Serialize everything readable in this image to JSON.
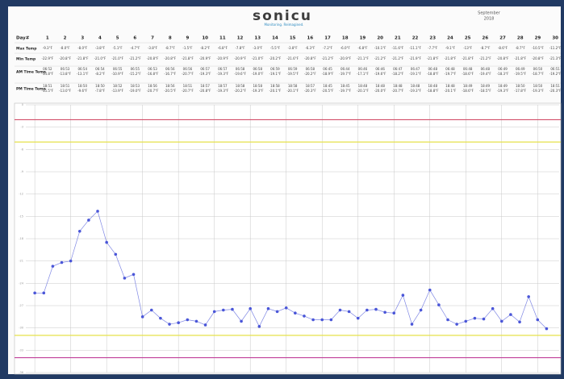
{
  "header": {
    "logo": "sonicu",
    "tagline": "Monitoring. Reimagined.",
    "month": "September",
    "year": "2018"
  },
  "table": {
    "row_labels": [
      "Day#",
      "Max Temp",
      "Min Temp",
      "AM Time Temp",
      "PM Time Temp"
    ],
    "days": [
      1,
      2,
      3,
      4,
      5,
      6,
      7,
      8,
      9,
      10,
      11,
      12,
      13,
      14,
      15,
      16,
      17,
      18,
      19,
      20,
      21,
      22,
      23,
      24,
      25,
      26,
      27,
      28,
      29,
      30
    ],
    "max": [
      "-9.3°F",
      "-8.0°F",
      "-8.0°F",
      "-3.8°F",
      "-5.1°F",
      "-4.7°F",
      "-3.8°F",
      "-8.7°F",
      "-1.5°F",
      "-8.2°F",
      "-6.8°F",
      "-7.8°F",
      "-3.0°F",
      "-5.5°F",
      "-3.8°F",
      "-6.3°F",
      "-7.2°F",
      "-6.0°F",
      "-6.8°F",
      "-10.1°F",
      "-11.6°F",
      "-11.1°F",
      "-7.7°F",
      "-9.1°F",
      "-13°F",
      "-8.7°F",
      "-8.6°F",
      "-8.7°F",
      "-10.5°F",
      "-11.2°F"
    ],
    "min": [
      "-22.9°F",
      "-20.8°F",
      "-21.8°F",
      "-21.0°F",
      "-21.0°F",
      "-21.2°F",
      "-20.8°F",
      "-20.8°F",
      "-21.8°F",
      "-20.9°F",
      "-20.9°F",
      "-20.9°F",
      "-21.0°F",
      "-20.2°F",
      "-21.6°F",
      "-20.8°F",
      "-21.2°F",
      "-20.9°F",
      "-21.1°F",
      "-21.2°F",
      "-21.2°F",
      "-21.9°F",
      "-21.8°F",
      "-21.8°F",
      "-21.8°F",
      "-21.2°F",
      "-20.8°F",
      "-21.8°F",
      "-20.8°F",
      "-21.3°F"
    ],
    "am": [
      [
        "06:52",
        "-14.8°F"
      ],
      [
        "06:53",
        "-13.8°F"
      ],
      [
        "06:54",
        "-13.1°F"
      ],
      [
        "06:54",
        "-8.2°F"
      ],
      [
        "06:55",
        "-10.9°F"
      ],
      [
        "06:55",
        "-15.2°F"
      ],
      [
        "06:53",
        "-16.8°F"
      ],
      [
        "06:56",
        "-16.7°F"
      ],
      [
        "06:56",
        "-20.7°F"
      ],
      [
        "06:57",
        "-19.3°F"
      ],
      [
        "06:57",
        "-19.3°F"
      ],
      [
        "06:58",
        "-19.6°F"
      ],
      [
        "06:58",
        "-19.0°F"
      ],
      [
        "06:59",
        "-19.1°F"
      ],
      [
        "06:59",
        "-19.5°F"
      ],
      [
        "06:58",
        "-20.2°F"
      ],
      [
        "06:45",
        "-18.9°F"
      ],
      [
        "06:44",
        "-19.7°F"
      ],
      [
        "06:46",
        "-17.1°F"
      ],
      [
        "06:46",
        "-19.6°F"
      ],
      [
        "06:47",
        "-18.2°F"
      ],
      [
        "06:47",
        "-19.1°F"
      ],
      [
        "06:48",
        "-18.8°F"
      ],
      [
        "06:48",
        "-19.7°F"
      ],
      [
        "06:48",
        "-18.6°F"
      ],
      [
        "06:48",
        "-19.4°F"
      ],
      [
        "06:49",
        "-18.3°F"
      ],
      [
        "06:49",
        "-19.5°F"
      ],
      [
        "06:50",
        "-18.7°F"
      ],
      [
        "06:51",
        "-19.2°F"
      ]
    ],
    "pm": [
      [
        "18:51",
        "-15.5°F"
      ],
      [
        "18:51",
        "-13.0°F"
      ],
      [
        "18:50",
        "-9.6°F"
      ],
      [
        "18:50",
        "-7.8°F"
      ],
      [
        "18:52",
        "-13.9°F"
      ],
      [
        "18:53",
        "-19.0°F"
      ],
      [
        "18:56",
        "-20.7°F"
      ],
      [
        "18:56",
        "-20.5°F"
      ],
      [
        "18:51",
        "-20.7°F"
      ],
      [
        "18:57",
        "-20.8°F"
      ],
      [
        "18:57",
        "-19.3°F"
      ],
      [
        "18:58",
        "-20.2°F"
      ],
      [
        "18:58",
        "-19.3°F"
      ],
      [
        "18:58",
        "-20.1°F"
      ],
      [
        "18:58",
        "-20.1°F"
      ],
      [
        "18:57",
        "-20.3°F"
      ],
      [
        "18:45",
        "-20.5°F"
      ],
      [
        "18:45",
        "-19.7°F"
      ],
      [
        "18:48",
        "-20.1°F"
      ],
      [
        "18:48",
        "-20.0°F"
      ],
      [
        "18:48",
        "-20.7°F"
      ],
      [
        "18:48",
        "-19.3°F"
      ],
      [
        "18:48",
        "-18.8°F"
      ],
      [
        "18:48",
        "-20.1°F"
      ],
      [
        "18:49",
        "-18.6°F"
      ],
      [
        "18:49",
        "-18.5°F"
      ],
      [
        "18:49",
        "-19.3°F"
      ],
      [
        "18:50",
        "-17.8°F"
      ],
      [
        "18:50",
        "-19.3°F"
      ],
      [
        "18:51",
        "-20.3°F"
      ]
    ]
  },
  "chart_data": {
    "type": "line",
    "color": "#4a56d8",
    "x": [
      1,
      1.5,
      2,
      2.5,
      3,
      3.5,
      4,
      4.5,
      5,
      5.5,
      6,
      6.5,
      7,
      7.5,
      8,
      8.5,
      9,
      9.5,
      10,
      10.5,
      11,
      11.5,
      12,
      12.5,
      13,
      13.5,
      14,
      14.5,
      15,
      15.5,
      16,
      16.5,
      17,
      17.5,
      18,
      18.5,
      19,
      19.5,
      20,
      20.5,
      21,
      21.5,
      22,
      22.5,
      23,
      23.5,
      24,
      24.5,
      25,
      25.5,
      26,
      26.5,
      27,
      27.5,
      28,
      28.5,
      29,
      29.5
    ],
    "values": [
      -25.3,
      -25.3,
      -21.7,
      -21.2,
      -21.0,
      -17.0,
      -15.5,
      -14.3,
      -18.5,
      -20.1,
      -23.3,
      -22.8,
      -28.5,
      -27.6,
      -28.7,
      -29.5,
      -29.3,
      -28.9,
      -29.1,
      -29.6,
      -27.8,
      -27.6,
      -27.5,
      -29.1,
      -27.4,
      -29.8,
      -27.4,
      -27.8,
      -27.3,
      -28.0,
      -28.4,
      -28.9,
      -28.9,
      -28.9,
      -27.6,
      -27.8,
      -28.7,
      -27.6,
      -27.5,
      -27.9,
      -28.0,
      -25.6,
      -29.5,
      -27.6,
      -24.9,
      -26.9,
      -28.9,
      -29.5,
      -29.1,
      -28.7,
      -28.8,
      -27.4,
      -29.1,
      -28.2,
      -29.2,
      -25.8,
      -28.9,
      -30.1
    ],
    "xlim": [
      0.5,
      30.2
    ],
    "xgrid": [
      1,
      3,
      5,
      7,
      9,
      11,
      13,
      15,
      17,
      19,
      21,
      23,
      25,
      27,
      29
    ],
    "ylim": [
      -36,
      0
    ],
    "yticks": [
      -36,
      -33,
      -30,
      -27,
      -24,
      -21,
      -18,
      -15,
      -12,
      -9,
      -6,
      -3,
      0
    ],
    "grid": true,
    "thresholds": [
      {
        "value": -2,
        "color": "#d2506a"
      },
      {
        "value": -5,
        "color": "#e6e24a"
      },
      {
        "value": -31,
        "color": "#e6e24a"
      },
      {
        "value": -34,
        "color": "#c0409a"
      }
    ]
  }
}
